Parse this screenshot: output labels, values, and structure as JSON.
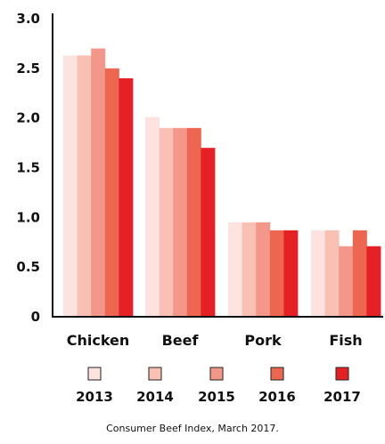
{
  "chart_data": {
    "type": "bar",
    "categories": [
      "Chicken",
      "Beef",
      "Pork",
      "Fish"
    ],
    "series": [
      {
        "name": "2013",
        "values": [
          2.63,
          2.01,
          0.95,
          0.87
        ]
      },
      {
        "name": "2014",
        "values": [
          2.63,
          1.9,
          0.95,
          0.87
        ]
      },
      {
        "name": "2015",
        "values": [
          2.7,
          1.9,
          0.95,
          0.71
        ]
      },
      {
        "name": "2016",
        "values": [
          2.5,
          1.9,
          0.87,
          0.87
        ]
      },
      {
        "name": "2017",
        "values": [
          2.4,
          1.7,
          0.87,
          0.71
        ]
      }
    ],
    "y_ticks": [
      "0",
      "0.5",
      "1.0",
      "1.5",
      "2.0",
      "2.5",
      "3.0"
    ],
    "ylim": [
      0,
      3.0
    ],
    "grid": false,
    "legend_position": "bottom",
    "title": "",
    "xlabel": "",
    "ylabel": "",
    "colors": [
      "#fde3df",
      "#f9c0b4",
      "#f2978a",
      "#ec6650",
      "#e52126"
    ]
  },
  "source_note": "Consumer Beef Index, March 2017."
}
